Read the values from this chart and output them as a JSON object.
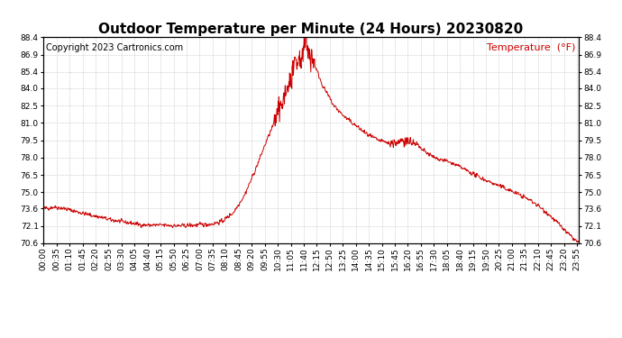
{
  "title": "Outdoor Temperature per Minute (24 Hours) 20230820",
  "copyright_text": "Copyright 2023 Cartronics.com",
  "legend_label": "Temperature  (°F)",
  "line_color": "#cc0000",
  "background_color": "#ffffff",
  "grid_color": "#bbbbbb",
  "ylim": [
    70.6,
    88.4
  ],
  "yticks": [
    70.6,
    72.1,
    73.6,
    75.0,
    76.5,
    78.0,
    79.5,
    81.0,
    82.5,
    84.0,
    85.4,
    86.9,
    88.4
  ],
  "title_fontsize": 11,
  "tick_fontsize": 6.5,
  "copyright_fontsize": 7,
  "legend_fontsize": 8,
  "total_minutes": 1440
}
